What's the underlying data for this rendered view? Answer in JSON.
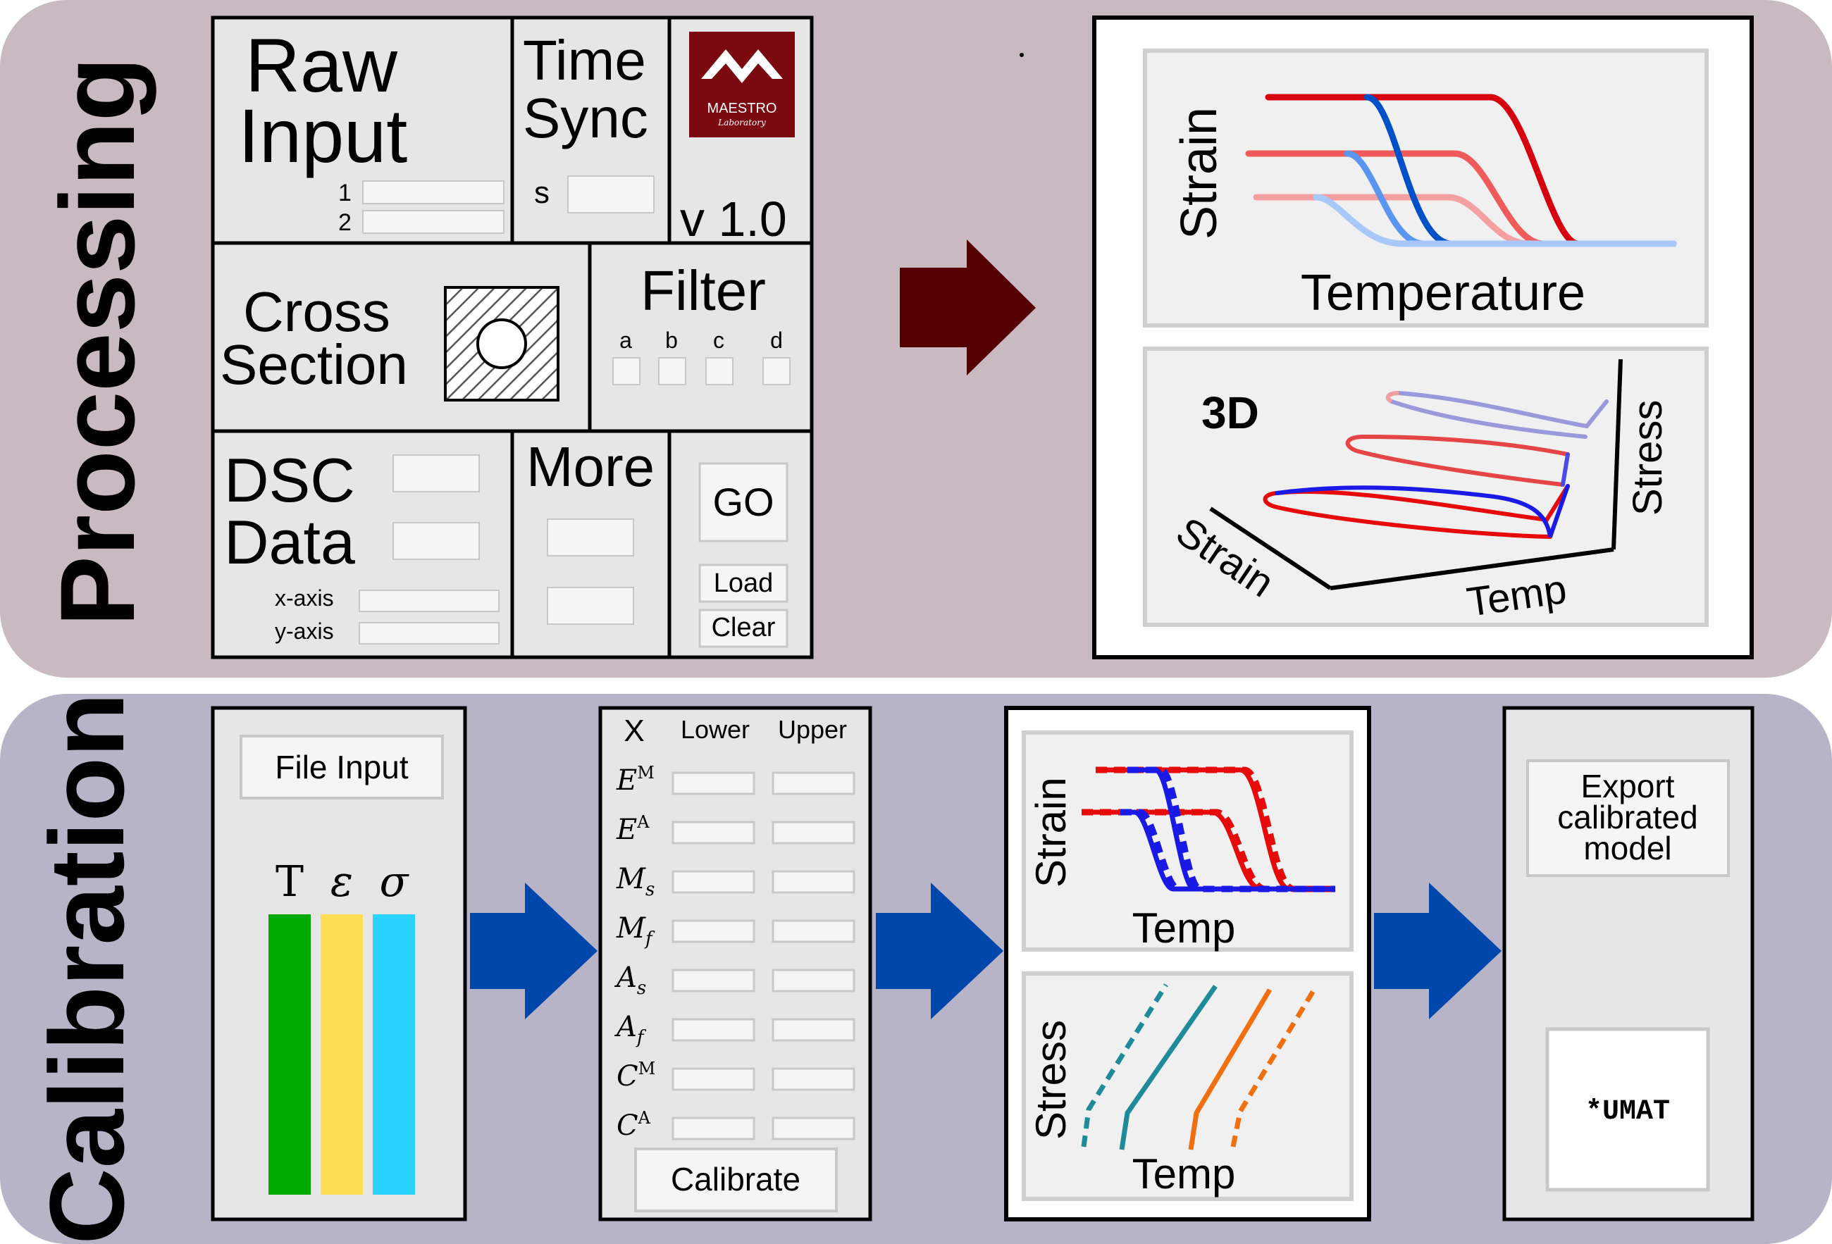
{
  "processing": {
    "band_label": "Processing",
    "raw_input": {
      "title_line1": "Raw",
      "title_line2": "Input",
      "field1_label": "1",
      "field2_label": "2"
    },
    "time_sync": {
      "title_line1": "Time",
      "title_line2": "Sync",
      "field_label": "s"
    },
    "logo": {
      "brand": "MAESTRO",
      "subtitle": "Laboratory",
      "version": "v 1.0"
    },
    "cross_section": {
      "title_line1": "Cross",
      "title_line2": "Section"
    },
    "filter": {
      "title": "Filter",
      "labels": [
        "a",
        "b",
        "c",
        "d"
      ]
    },
    "dsc": {
      "title_line1": "DSC",
      "title_line2": "Data",
      "x_label": "x-axis",
      "y_label": "y-axis"
    },
    "more": {
      "title": "More"
    },
    "buttons": {
      "go": "GO",
      "load": "Load",
      "clear": "Clear"
    },
    "plot_2d": {
      "ylabel": "Strain",
      "xlabel": "Temperature",
      "series_colors": [
        "#d7000f",
        "#f05a5a",
        "#f5a0a0",
        "#0050c8",
        "#5a96f0",
        "#a8c8fa"
      ]
    },
    "plot_3d": {
      "badge": "3D",
      "x_axis": "Temp",
      "y_axis": "Strain",
      "z_axis": "Stress"
    }
  },
  "calibration": {
    "band_label": "Calibration",
    "file_input": {
      "button": "File Input",
      "columns": [
        {
          "symbol": "T",
          "color": "#00aa00"
        },
        {
          "symbol": "ε",
          "color": "#ffdd55"
        },
        {
          "symbol": "σ",
          "color": "#2ad4ff"
        }
      ]
    },
    "params": {
      "header_x": "X",
      "header_lower": "Lower",
      "header_upper": "Upper",
      "rows": [
        {
          "base": "E",
          "sup": "M",
          "sub": ""
        },
        {
          "base": "E",
          "sup": "A",
          "sub": ""
        },
        {
          "base": "M",
          "sup": "",
          "sub": "s"
        },
        {
          "base": "M",
          "sup": "",
          "sub": "f"
        },
        {
          "base": "A",
          "sup": "",
          "sub": "s"
        },
        {
          "base": "A",
          "sup": "",
          "sub": "f"
        },
        {
          "base": "C",
          "sup": "M",
          "sub": ""
        },
        {
          "base": "C",
          "sup": "A",
          "sub": ""
        }
      ],
      "button": "Calibrate"
    },
    "strain_plot": {
      "ylabel": "Strain",
      "xlabel": "Temp"
    },
    "stress_plot": {
      "ylabel": "Stress",
      "xlabel": "Temp",
      "colors": [
        "#1f8a9a",
        "#f07010"
      ]
    },
    "export": {
      "line1": "Export",
      "line2": "calibrated",
      "line3": "model",
      "umat": "*UMAT"
    }
  },
  "colors": {
    "processing_bg": "#c9b9c0",
    "calibration_bg": "#b8b4c8",
    "dark_arrow": "#550000",
    "blue_arrow": "#0047ab",
    "panel_bg": "#e6e6e6",
    "field_bg": "#f5f5f5",
    "logo_bg": "#7b0a10"
  }
}
